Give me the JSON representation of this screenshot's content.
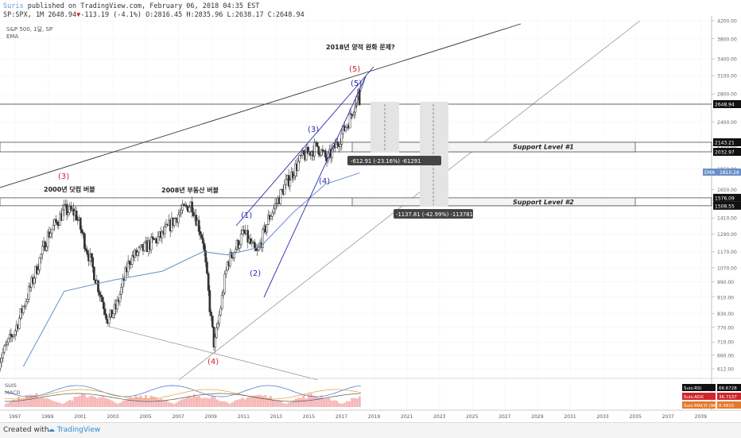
{
  "header": {
    "line1_user": "Suris",
    "line1_rest": "published on TradingView.com, February 06, 2018 04:35 EST",
    "line2_symbol": "SP:SPX, 1M",
    "line2_last": "2648.94",
    "line2_arrow": "▼",
    "line2_change": "-113.19 (-4.1%)",
    "line2_ohlc": "O:2816.45 H:2835.96 L:2638.17 C:2648.94"
  },
  "legend": {
    "symbol": "S&P 500, 1달, SP",
    "ema": "EMA"
  },
  "annotations": {
    "title": "2018년 양적 완화 문제?",
    "bubble2000": "2000년 닷컴 버블",
    "bubble2008": "2008년 부동산 버블",
    "wave3_red": "(3)",
    "wave4_red": "(4)",
    "wave5_red": "(5)",
    "wave1": "(1)",
    "wave2": "(2)",
    "wave3": "(3)",
    "wave4": "(4)",
    "wave5": "(5)",
    "support1": "Support Level #1",
    "support2": "Support Level #2",
    "measure1": "-612.91 (-23.16%) -61291",
    "measure2": "-1137.81 (-42.99%) -113781"
  },
  "price_badges": {
    "last": "2648.94",
    "s1a": "2143.21",
    "s1b": "2032.97",
    "ema_label": "EMA",
    "ema_value": "1810.26",
    "s2a": "1576.09",
    "s2b": "1508.55"
  },
  "indicators": {
    "label1": "SUIS",
    "label2": "MACD",
    "rsi_label": "Suis:RSI",
    "rsi_value": "66.6728",
    "adx_label": "Suis:ADX",
    "adx_value": "36.7137",
    "macd_label": "Suis:MACD (96)",
    "macd_value": "8.3815"
  },
  "footer": {
    "created": "Created with",
    "brand": "TradingView"
  },
  "colors": {
    "bull": "#333333",
    "bear": "#333333",
    "ema": "#6a8fc7",
    "wave_blue": "#2b2bb0",
    "wave_red": "#d0262b",
    "badge": "#111111"
  },
  "chart_data": {
    "type": "candlestick",
    "title": "2018년 양적 완화 문제?",
    "symbol": "S&P 500, 1달, SP",
    "interval": "1M",
    "x_ticks": [
      "1997",
      "1999",
      "2001",
      "2003",
      "2005",
      "2007",
      "2009",
      "2011",
      "2013",
      "2015",
      "2017",
      "2019",
      "2021",
      "2023",
      "2025",
      "2027",
      "2029",
      "2031",
      "2033",
      "2035",
      "2037",
      "2039"
    ],
    "y_ticks": [
      4200,
      3800,
      3400,
      3100,
      2800,
      2400,
      2100,
      1850,
      1650,
      1410,
      1290,
      1170,
      1070,
      990,
      910,
      830,
      770,
      710,
      660,
      612
    ],
    "price_path_yearly": [
      {
        "year": 1996.0,
        "close": 640
      },
      {
        "year": 1997.0,
        "close": 760
      },
      {
        "year": 1998.0,
        "close": 980
      },
      {
        "year": 1999.0,
        "close": 1280
      },
      {
        "year": 2000.0,
        "close": 1470
      },
      {
        "year": 2000.7,
        "close": 1450
      },
      {
        "year": 2001.5,
        "close": 1150
      },
      {
        "year": 2002.7,
        "close": 800
      },
      {
        "year": 2003.2,
        "close": 860
      },
      {
        "year": 2004.0,
        "close": 1120
      },
      {
        "year": 2005.0,
        "close": 1200
      },
      {
        "year": 2006.0,
        "close": 1280
      },
      {
        "year": 2007.0,
        "close": 1440
      },
      {
        "year": 2007.8,
        "close": 1530
      },
      {
        "year": 2008.5,
        "close": 1250
      },
      {
        "year": 2009.0,
        "close": 800
      },
      {
        "year": 2009.2,
        "close": 690
      },
      {
        "year": 2010.0,
        "close": 1100
      },
      {
        "year": 2011.0,
        "close": 1300
      },
      {
        "year": 2011.8,
        "close": 1150
      },
      {
        "year": 2012.5,
        "close": 1400
      },
      {
        "year": 2013.5,
        "close": 1680
      },
      {
        "year": 2014.5,
        "close": 1960
      },
      {
        "year": 2015.5,
        "close": 2100
      },
      {
        "year": 2016.1,
        "close": 1940
      },
      {
        "year": 2016.8,
        "close": 2160
      },
      {
        "year": 2017.5,
        "close": 2450
      },
      {
        "year": 2018.0,
        "close": 2820
      },
      {
        "year": 2018.1,
        "close": 2649
      }
    ],
    "ema_path": [
      {
        "year": 1997.5,
        "value": 620
      },
      {
        "year": 2000.0,
        "value": 940
      },
      {
        "year": 2003.0,
        "value": 1000
      },
      {
        "year": 2006.0,
        "value": 1050
      },
      {
        "year": 2008.5,
        "value": 1170
      },
      {
        "year": 2010.0,
        "value": 1150
      },
      {
        "year": 2012.0,
        "value": 1200
      },
      {
        "year": 2014.0,
        "value": 1450
      },
      {
        "year": 2016.0,
        "value": 1700
      },
      {
        "year": 2018.1,
        "value": 1810
      }
    ],
    "support_levels": [
      {
        "name": "Support Level #1",
        "upper": 2143.21,
        "lower": 2032.97
      },
      {
        "name": "Support Level #2",
        "upper": 1576.09,
        "lower": 1508.55
      }
    ],
    "last_price": 2648.94
  }
}
